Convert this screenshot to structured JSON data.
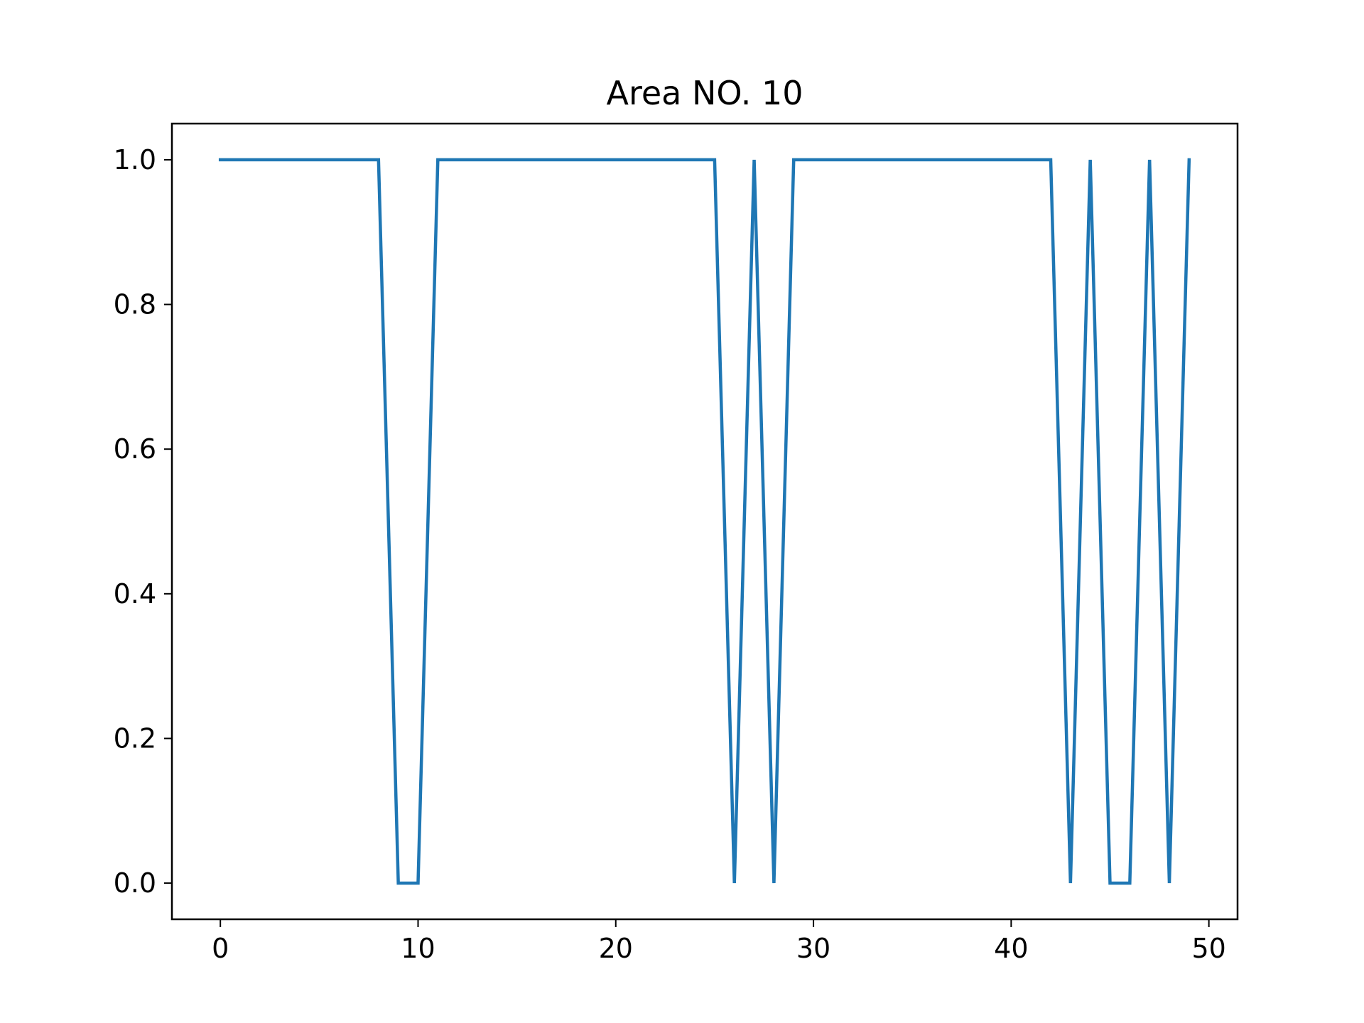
{
  "chart_data": {
    "type": "line",
    "title": "Area NO. 10",
    "xlabel": "",
    "ylabel": "",
    "xlim": [
      -2.45,
      51.45
    ],
    "ylim": [
      -0.05,
      1.05
    ],
    "xticks": [
      0,
      10,
      20,
      30,
      40,
      50
    ],
    "yticks": [
      0.0,
      0.2,
      0.4,
      0.6,
      0.8,
      1.0
    ],
    "xtick_labels": [
      "0",
      "10",
      "20",
      "30",
      "40",
      "50"
    ],
    "ytick_labels": [
      "0.0",
      "0.2",
      "0.4",
      "0.6",
      "0.8",
      "1.0"
    ],
    "grid": false,
    "legend": "none",
    "series": [
      {
        "color": "#1f77b4",
        "x": [
          0,
          1,
          2,
          3,
          4,
          5,
          6,
          7,
          8,
          9,
          10,
          11,
          12,
          13,
          14,
          15,
          16,
          17,
          18,
          19,
          20,
          21,
          22,
          23,
          24,
          25,
          26,
          27,
          28,
          29,
          30,
          31,
          32,
          33,
          34,
          35,
          36,
          37,
          38,
          39,
          40,
          41,
          42,
          43,
          44,
          45,
          46,
          47,
          48,
          49
        ],
        "y": [
          1,
          1,
          1,
          1,
          1,
          1,
          1,
          1,
          1,
          0,
          0,
          1,
          1,
          1,
          1,
          1,
          1,
          1,
          1,
          1,
          1,
          1,
          1,
          1,
          1,
          1,
          0,
          1,
          0,
          1,
          1,
          1,
          1,
          1,
          1,
          1,
          1,
          1,
          1,
          1,
          1,
          1,
          1,
          0,
          1,
          0,
          0,
          1,
          0,
          1
        ]
      }
    ]
  }
}
